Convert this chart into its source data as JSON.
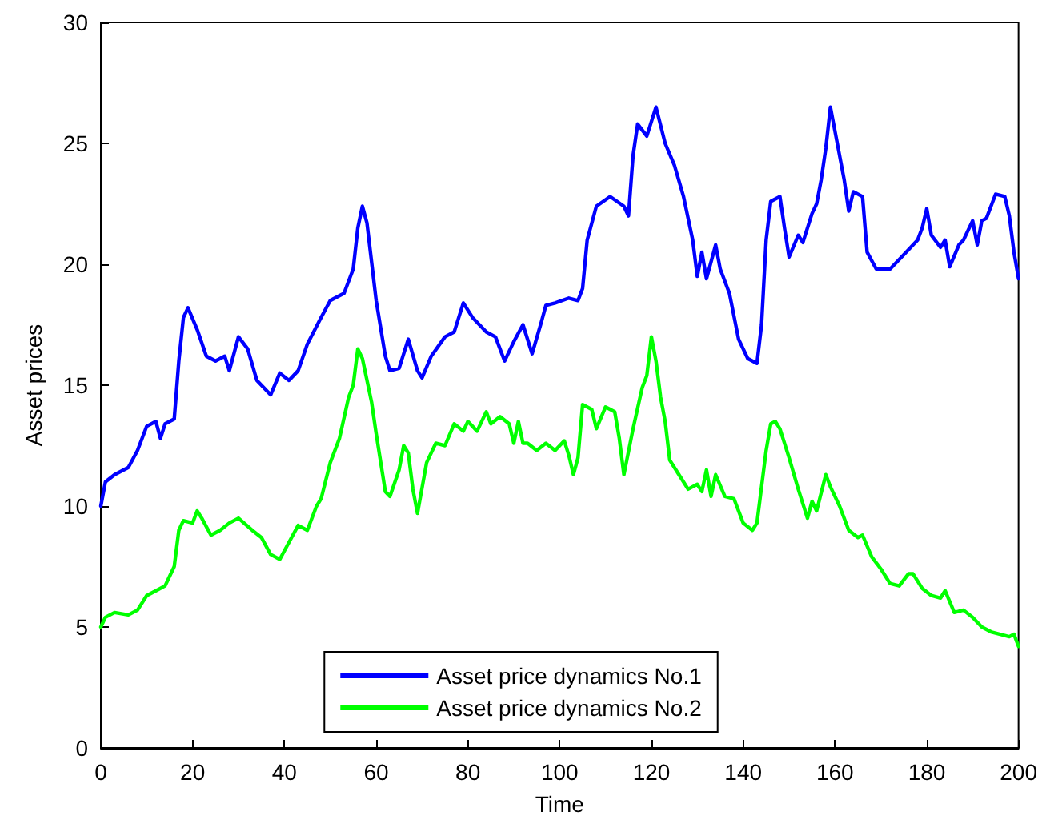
{
  "chart_data": {
    "type": "line",
    "xlabel": "Time",
    "ylabel": "Asset prices",
    "xlim": [
      0,
      200
    ],
    "xticks": [
      0,
      20,
      40,
      60,
      80,
      100,
      120,
      140,
      160,
      180,
      200
    ],
    "ylim": [
      0,
      30
    ],
    "yticks": [
      0,
      5,
      10,
      15,
      20,
      25,
      30
    ],
    "grid": false,
    "legend": "bottom",
    "marker": "none",
    "line_style": "solid",
    "series": [
      {
        "name": "Asset price dynamics No.1",
        "color": "#0000ff",
        "x": [
          0,
          1,
          3,
          6,
          8,
          10,
          12,
          13,
          14,
          16,
          17,
          18,
          19,
          21,
          23,
          25,
          27,
          28,
          30,
          32,
          34,
          37,
          39,
          41,
          43,
          45,
          48,
          50,
          53,
          55,
          56,
          57,
          58,
          60,
          62,
          63,
          65,
          67,
          69,
          70,
          72,
          75,
          77,
          79,
          81,
          84,
          86,
          88,
          90,
          92,
          94,
          96,
          97,
          99,
          102,
          104,
          105,
          106,
          108,
          111,
          114,
          115,
          116,
          117,
          119,
          121,
          123,
          125,
          127,
          129,
          130,
          131,
          132,
          134,
          135,
          137,
          139,
          141,
          143,
          144,
          145,
          146,
          148,
          149,
          150,
          152,
          153,
          155,
          156,
          157,
          158,
          159,
          160,
          162,
          163,
          164,
          166,
          167,
          169,
          172,
          175,
          178,
          179,
          180,
          181,
          183,
          184,
          185,
          187,
          188,
          190,
          191,
          192,
          193,
          195,
          197,
          198,
          199,
          200
        ],
        "values": [
          10.0,
          11,
          11.3,
          11.6,
          12.3,
          13.3,
          13.5,
          12.8,
          13.4,
          13.6,
          16,
          17.8,
          18.2,
          17.3,
          16.2,
          16,
          16.2,
          15.6,
          17.0,
          16.5,
          15.2,
          14.6,
          15.5,
          15.2,
          15.6,
          16.7,
          17.8,
          18.5,
          18.8,
          19.8,
          21.5,
          22.4,
          21.7,
          18.5,
          16.2,
          15.6,
          15.7,
          16.9,
          15.6,
          15.3,
          16.2,
          17.0,
          17.2,
          18.4,
          17.8,
          17.2,
          17.0,
          16.0,
          16.8,
          17.5,
          16.3,
          17.6,
          18.3,
          18.4,
          18.6,
          18.5,
          19,
          21,
          22.4,
          22.8,
          22.4,
          22.0,
          24.5,
          25.8,
          25.3,
          26.5,
          25.0,
          24.1,
          22.8,
          21.0,
          19.5,
          20.5,
          19.4,
          20.8,
          19.8,
          18.8,
          16.9,
          16.1,
          15.9,
          17.5,
          21.0,
          22.6,
          22.8,
          21.5,
          20.3,
          21.2,
          20.9,
          22.1,
          22.5,
          23.5,
          24.8,
          26.5,
          25.5,
          23.5,
          22.2,
          23.0,
          22.8,
          20.5,
          19.8,
          19.8,
          20.4,
          21.0,
          21.5,
          22.3,
          21.2,
          20.7,
          21.0,
          19.9,
          20.8,
          21.0,
          21.8,
          20.8,
          21.8,
          21.9,
          22.9,
          22.8,
          22.0,
          20.5,
          19.4
        ]
      },
      {
        "name": "Asset price dynamics No.2",
        "color": "#00ff00",
        "x": [
          0,
          1,
          3,
          6,
          8,
          10,
          12,
          14,
          16,
          17,
          18,
          20,
          21,
          22,
          24,
          26,
          28,
          30,
          33,
          35,
          37,
          39,
          41,
          43,
          45,
          47,
          48,
          50,
          52,
          54,
          55,
          56,
          57,
          59,
          60,
          62,
          63,
          65,
          66,
          67,
          68,
          69,
          71,
          73,
          75,
          77,
          79,
          80,
          82,
          84,
          85,
          87,
          89,
          90,
          91,
          92,
          93,
          95,
          97,
          99,
          101,
          102,
          103,
          104,
          105,
          107,
          108,
          110,
          112,
          113,
          114,
          116,
          118,
          119,
          120,
          121,
          122,
          123,
          124,
          126,
          128,
          130,
          131,
          132,
          133,
          134,
          136,
          138,
          140,
          142,
          143,
          145,
          146,
          147,
          148,
          150,
          152,
          154,
          155,
          156,
          158,
          159,
          161,
          163,
          165,
          166,
          168,
          170,
          172,
          174,
          176,
          177,
          179,
          181,
          183,
          184,
          186,
          188,
          190,
          192,
          194,
          196,
          198,
          199,
          200
        ],
        "values": [
          5.0,
          5.4,
          5.6,
          5.5,
          5.7,
          6.3,
          6.5,
          6.7,
          7.5,
          9.0,
          9.4,
          9.3,
          9.8,
          9.5,
          8.8,
          9.0,
          9.3,
          9.5,
          9.0,
          8.7,
          8.0,
          7.8,
          8.5,
          9.2,
          9.0,
          10.0,
          10.3,
          11.8,
          12.8,
          14.5,
          15.0,
          16.5,
          16.1,
          14.3,
          13.0,
          10.6,
          10.4,
          11.5,
          12.5,
          12.2,
          10.7,
          9.7,
          11.8,
          12.6,
          12.5,
          13.4,
          13.1,
          13.5,
          13.1,
          13.9,
          13.4,
          13.7,
          13.4,
          12.6,
          13.5,
          12.6,
          12.6,
          12.3,
          12.6,
          12.3,
          12.7,
          12.1,
          11.3,
          12.0,
          14.2,
          14.0,
          13.2,
          14.1,
          13.9,
          12.8,
          11.3,
          13.2,
          14.9,
          15.4,
          17.0,
          16.0,
          14.5,
          13.5,
          11.9,
          11.3,
          10.7,
          10.9,
          10.6,
          11.5,
          10.4,
          11.3,
          10.4,
          10.3,
          9.3,
          9.0,
          9.3,
          12.3,
          13.4,
          13.5,
          13.2,
          12.0,
          10.7,
          9.5,
          10.2,
          9.8,
          11.3,
          10.8,
          10.0,
          9.0,
          8.7,
          8.8,
          7.9,
          7.4,
          6.8,
          6.7,
          7.2,
          7.2,
          6.6,
          6.3,
          6.2,
          6.5,
          5.6,
          5.7,
          5.4,
          5.0,
          4.8,
          4.7,
          4.6,
          4.7,
          4.2
        ]
      }
    ]
  }
}
